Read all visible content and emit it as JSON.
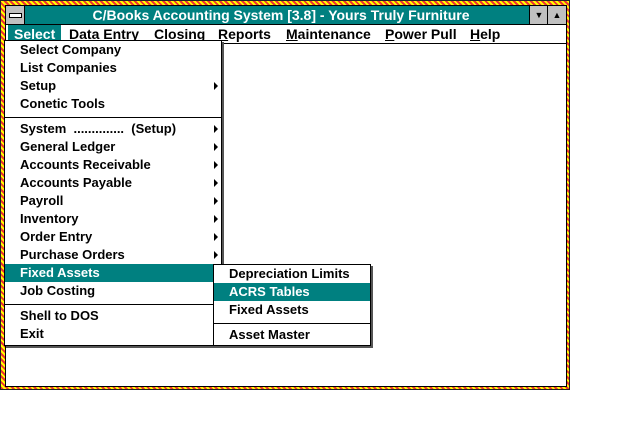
{
  "window": {
    "title": "C/Books Accounting System [3.8] - Yours Truly Furniture",
    "minimize_icon": "down-triangle",
    "maximize_icon": "up-triangle"
  },
  "menubar": [
    {
      "label": "Select",
      "u": "S",
      "rest": "elect"
    },
    {
      "label": "Data Entry",
      "u": "D",
      "rest": "ata Entry"
    },
    {
      "label": "Closing",
      "u": "C",
      "rest": "losing"
    },
    {
      "label": "Reports",
      "u": "R",
      "rest": "eports"
    },
    {
      "label": "Maintenance",
      "u": "M",
      "rest": "aintenance"
    },
    {
      "label": "Power Pull",
      "u": "P",
      "rest": "ower Pull"
    },
    {
      "label": "Help",
      "u": "H",
      "rest": "elp"
    }
  ],
  "select_menu": [
    "Select Company",
    "List Companies",
    "Setup",
    "Conetic Tools",
    "System  ..............  (Setup)",
    "General Ledger",
    "Accounts Receivable",
    "Accounts Payable",
    "Payroll",
    "Inventory",
    "Order Entry",
    "Purchase Orders",
    "Fixed Assets",
    "Job Costing",
    "Shell to DOS",
    "Exit"
  ],
  "fixed_assets_submenu": [
    "Depreciation Limits",
    "ACRS Tables",
    "Fixed Assets",
    "Asset Master"
  ],
  "highlight_color": "#008080"
}
